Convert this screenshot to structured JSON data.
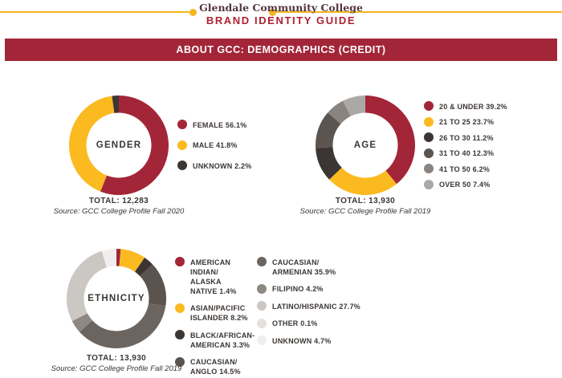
{
  "header": {
    "college_name": "Glendale Community College",
    "guide_title": "BRAND IDENTITY GUIDE"
  },
  "banner": {
    "title": "ABOUT GCC: DEMOGRAPHICS (CREDIT)"
  },
  "colors": {
    "crimson": "#A32638",
    "gold": "#FBBA20",
    "dark": "#3B3633",
    "banner_background": "#A32638",
    "header_rule_gold": "#F5B61E",
    "guide_title_red": "#AE2132",
    "college_name_maroon": "#54353D",
    "text_dark": "#3B3633"
  },
  "chart_data": [
    {
      "id": "gender",
      "type": "pie",
      "title": "GENDER",
      "total": "TOTAL: 12,283",
      "source": "Source: GCC College Profile Fall 2020",
      "legend_position": "right",
      "segments": [
        {
          "label": "FEMALE 56.1%",
          "value": 56.1,
          "color": "#A32638"
        },
        {
          "label": "MALE 41.8%",
          "value": 41.8,
          "color": "#FBBA20"
        },
        {
          "label": "UNKNOWN 2.2%",
          "value": 2.2,
          "color": "#3B3633"
        }
      ]
    },
    {
      "id": "age",
      "type": "pie",
      "title": "AGE",
      "total": "TOTAL: 13,930",
      "source": "Source: GCC College Profile Fall 2019",
      "legend_position": "right",
      "segments": [
        {
          "label": "20 & UNDER 39.2%",
          "value": 39.2,
          "color": "#A32638"
        },
        {
          "label": "21 TO 25 23.7%",
          "value": 23.7,
          "color": "#FBBA20"
        },
        {
          "label": "26 TO 30 11.2%",
          "value": 11.2,
          "color": "#3B3633"
        },
        {
          "label": "31 TO 40 12.3%",
          "value": 12.3,
          "color": "#5B544F"
        },
        {
          "label": "41 TO 50 6.2%",
          "value": 6.2,
          "color": "#8A8480"
        },
        {
          "label": "OVER 50 7.4%",
          "value": 7.4,
          "color": "#ACA8A5"
        }
      ]
    },
    {
      "id": "ethnicity",
      "type": "pie",
      "title": "ETHNICITY",
      "total": "TOTAL: 13,930",
      "source": "Source: GCC College Profile Fall 2019",
      "legend_position": "right-two-columns",
      "legend_split": 4,
      "segments": [
        {
          "label": "AMERICAN INDIAN/\nALASKA NATIVE 1.4%",
          "value": 1.4,
          "color": "#A32638"
        },
        {
          "label": "ASIAN/PACIFIC\nISLANDER 8.2%",
          "value": 8.2,
          "color": "#FBBA20"
        },
        {
          "label": "BLACK/AFRICAN-\nAMERICAN 3.3%",
          "value": 3.3,
          "color": "#3B3633"
        },
        {
          "label": "CAUCASIAN/\nANGLO 14.5%",
          "value": 14.5,
          "color": "#5B544E"
        },
        {
          "label": "CAUCASIAN/\nARMENIAN 35.9%",
          "value": 35.9,
          "color": "#6C655F"
        },
        {
          "label": "FILIPINO 4.2%",
          "value": 4.2,
          "color": "#8E8882"
        },
        {
          "label": "LATINO/HISPANIC 27.7%",
          "value": 27.7,
          "color": "#CBC7C3"
        },
        {
          "label": "OTHER 0.1%",
          "value": 0.1,
          "color": "#E3E0DD"
        },
        {
          "label": "UNKNOWN 4.7%",
          "value": 4.7,
          "color": "#F1EFED"
        }
      ]
    }
  ]
}
